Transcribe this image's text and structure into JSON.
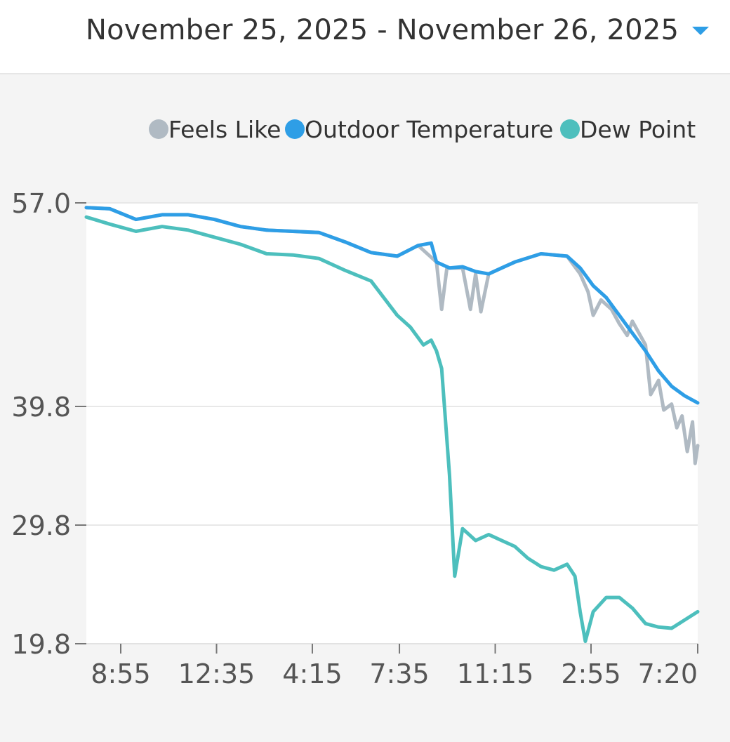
{
  "header": {
    "date_range": "November 25, 2025 - November 26, 2025",
    "dropdown_icon": "chevron-down-icon",
    "accent": "#2e9ee6"
  },
  "chart_data": {
    "type": "line",
    "title": "",
    "xlabel": "",
    "ylabel": "",
    "y_ticks": [
      "57.0",
      "39.8",
      "29.8",
      "19.8"
    ],
    "ylim": [
      19.8,
      57.0
    ],
    "y_scale_note": "non-linear axis: 57.0 -> 39.8 -> 29.8 -> 19.8 evenly mapped by segment",
    "x_ticks": [
      "8:55",
      "12:35",
      "4:15",
      "7:35",
      "11:15",
      "2:55",
      "7:20"
    ],
    "x_range_hours": [
      7.6,
      31.0
    ],
    "x_tick_hours": [
      8.9167,
      12.5833,
      16.25,
      19.5833,
      23.25,
      26.9167,
      31.0
    ],
    "legend": {
      "position": "top-right"
    },
    "series": [
      {
        "name": "Feels Like",
        "color": "#b0bac3",
        "points": [
          [
            7.6,
            56.6
          ],
          [
            8.5,
            56.5
          ],
          [
            9.5,
            55.6
          ],
          [
            10.5,
            56.0
          ],
          [
            11.5,
            56.0
          ],
          [
            12.5,
            55.6
          ],
          [
            13.5,
            55.0
          ],
          [
            14.5,
            54.7
          ],
          [
            15.5,
            54.6
          ],
          [
            16.5,
            54.5
          ],
          [
            17.5,
            53.7
          ],
          [
            18.5,
            52.8
          ],
          [
            19.5,
            52.5
          ],
          [
            20.3,
            53.4
          ],
          [
            21.0,
            52.0
          ],
          [
            21.2,
            48.0
          ],
          [
            21.4,
            51.5
          ],
          [
            22.0,
            51.5
          ],
          [
            22.3,
            48.0
          ],
          [
            22.5,
            51.0
          ],
          [
            22.7,
            47.8
          ],
          [
            23.0,
            51.0
          ],
          [
            23.5,
            51.5
          ],
          [
            24.0,
            52.0
          ],
          [
            25.0,
            52.7
          ],
          [
            26.0,
            52.5
          ],
          [
            26.5,
            51.0
          ],
          [
            26.8,
            49.5
          ],
          [
            27.0,
            47.5
          ],
          [
            27.3,
            48.8
          ],
          [
            27.7,
            48.0
          ],
          [
            28.0,
            46.8
          ],
          [
            28.3,
            45.8
          ],
          [
            28.5,
            47.0
          ],
          [
            29.0,
            45.0
          ],
          [
            29.2,
            40.8
          ],
          [
            29.5,
            42.0
          ],
          [
            29.7,
            39.5
          ],
          [
            30.0,
            40.0
          ],
          [
            30.2,
            38.0
          ],
          [
            30.4,
            39.0
          ],
          [
            30.6,
            36.0
          ],
          [
            30.8,
            38.5
          ],
          [
            30.9,
            35.0
          ],
          [
            31.0,
            36.5
          ]
        ]
      },
      {
        "name": "Outdoor Temperature",
        "color": "#2e9ee6",
        "points": [
          [
            7.6,
            56.6
          ],
          [
            8.5,
            56.5
          ],
          [
            9.5,
            55.6
          ],
          [
            10.5,
            56.0
          ],
          [
            11.5,
            56.0
          ],
          [
            12.5,
            55.6
          ],
          [
            13.5,
            55.0
          ],
          [
            14.5,
            54.7
          ],
          [
            15.5,
            54.6
          ],
          [
            16.5,
            54.5
          ],
          [
            17.5,
            53.7
          ],
          [
            18.5,
            52.8
          ],
          [
            19.5,
            52.5
          ],
          [
            20.3,
            53.4
          ],
          [
            20.8,
            53.6
          ],
          [
            21.0,
            52.0
          ],
          [
            21.5,
            51.5
          ],
          [
            22.0,
            51.6
          ],
          [
            22.5,
            51.2
          ],
          [
            23.0,
            51.0
          ],
          [
            23.5,
            51.5
          ],
          [
            24.0,
            52.0
          ],
          [
            25.0,
            52.7
          ],
          [
            26.0,
            52.5
          ],
          [
            26.5,
            51.5
          ],
          [
            27.0,
            50.0
          ],
          [
            27.5,
            49.0
          ],
          [
            28.0,
            47.5
          ],
          [
            28.5,
            46.0
          ],
          [
            29.0,
            44.5
          ],
          [
            29.5,
            42.8
          ],
          [
            30.0,
            41.5
          ],
          [
            30.5,
            40.7
          ],
          [
            31.0,
            40.1
          ]
        ]
      },
      {
        "name": "Dew Point",
        "color": "#4dbfbd",
        "points": [
          [
            7.6,
            55.8
          ],
          [
            8.5,
            55.2
          ],
          [
            9.5,
            54.6
          ],
          [
            10.5,
            55.0
          ],
          [
            11.5,
            54.7
          ],
          [
            12.5,
            54.1
          ],
          [
            13.5,
            53.5
          ],
          [
            14.5,
            52.7
          ],
          [
            15.5,
            52.6
          ],
          [
            16.5,
            52.3
          ],
          [
            17.5,
            51.3
          ],
          [
            18.5,
            50.4
          ],
          [
            19.5,
            47.5
          ],
          [
            20.0,
            46.5
          ],
          [
            20.5,
            45.0
          ],
          [
            20.8,
            45.4
          ],
          [
            21.0,
            44.5
          ],
          [
            21.2,
            43.0
          ],
          [
            21.5,
            34.0
          ],
          [
            21.7,
            25.5
          ],
          [
            22.0,
            29.5
          ],
          [
            22.5,
            28.5
          ],
          [
            23.0,
            29.0
          ],
          [
            23.5,
            28.5
          ],
          [
            24.0,
            28.0
          ],
          [
            24.5,
            27.0
          ],
          [
            25.0,
            26.3
          ],
          [
            25.5,
            26.0
          ],
          [
            26.0,
            26.5
          ],
          [
            26.3,
            25.5
          ],
          [
            26.5,
            22.5
          ],
          [
            26.7,
            20.0
          ],
          [
            27.0,
            22.5
          ],
          [
            27.5,
            23.7
          ],
          [
            28.0,
            23.7
          ],
          [
            28.5,
            22.8
          ],
          [
            29.0,
            21.5
          ],
          [
            29.5,
            21.2
          ],
          [
            30.0,
            21.1
          ],
          [
            30.5,
            21.8
          ],
          [
            31.0,
            22.5
          ]
        ]
      }
    ]
  }
}
